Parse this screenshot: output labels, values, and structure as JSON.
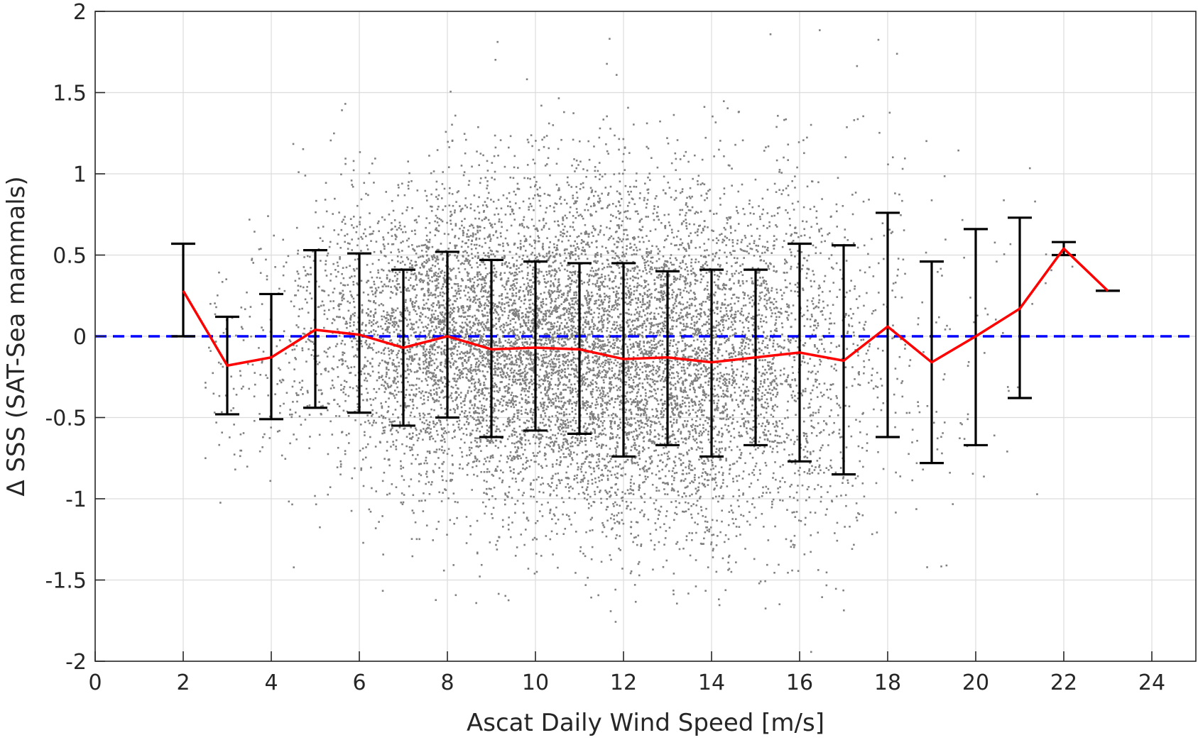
{
  "chart_data": {
    "type": "scatter",
    "xlabel": "Ascat Daily Wind Speed [m/s]",
    "ylabel": "Δ SSS (SAT-Sea mammals)",
    "xlim": [
      0,
      25
    ],
    "ylim": [
      -2,
      2
    ],
    "x_ticks": [
      0,
      2,
      4,
      6,
      8,
      10,
      12,
      14,
      16,
      18,
      20,
      22,
      24
    ],
    "x_tick_labels": [
      "0",
      "2",
      "4",
      "6",
      "8",
      "10",
      "12",
      "14",
      "16",
      "18",
      "20",
      "22",
      "24"
    ],
    "y_ticks": [
      -2,
      -1.5,
      -1,
      -0.5,
      0,
      0.5,
      1,
      1.5,
      2
    ],
    "y_tick_labels": [
      "-2",
      "-1.5",
      "-1",
      "-0.5",
      "0",
      "0.5",
      "1",
      "1.5",
      "2"
    ],
    "grid": true,
    "reference_line": {
      "y": 0,
      "color": "#0000ff",
      "style": "dashed"
    },
    "scatter": {
      "color": "#808080",
      "description": "Individual daily collocations, concentrated between 7 and 17 m/s, spread roughly -1.8 to 1.8",
      "approx_distribution": [
        {
          "x_center": 3,
          "count": 60,
          "spread": 0.35
        },
        {
          "x_center": 4,
          "count": 90,
          "spread": 0.4
        },
        {
          "x_center": 5,
          "count": 200,
          "spread": 0.42
        },
        {
          "x_center": 6,
          "count": 420,
          "spread": 0.45
        },
        {
          "x_center": 7,
          "count": 700,
          "spread": 0.45
        },
        {
          "x_center": 8,
          "count": 1000,
          "spread": 0.48
        },
        {
          "x_center": 9,
          "count": 1150,
          "spread": 0.5
        },
        {
          "x_center": 10,
          "count": 1250,
          "spread": 0.5
        },
        {
          "x_center": 11,
          "count": 1250,
          "spread": 0.52
        },
        {
          "x_center": 12,
          "count": 1200,
          "spread": 0.55
        },
        {
          "x_center": 13,
          "count": 1100,
          "spread": 0.52
        },
        {
          "x_center": 14,
          "count": 950,
          "spread": 0.55
        },
        {
          "x_center": 15,
          "count": 700,
          "spread": 0.52
        },
        {
          "x_center": 16,
          "count": 450,
          "spread": 0.6
        },
        {
          "x_center": 17,
          "count": 230,
          "spread": 0.65
        },
        {
          "x_center": 18,
          "count": 100,
          "spread": 0.65
        },
        {
          "x_center": 19,
          "count": 45,
          "spread": 0.6
        },
        {
          "x_center": 20,
          "count": 25,
          "spread": 0.6
        },
        {
          "x_center": 21,
          "count": 12,
          "spread": 0.5
        },
        {
          "x_center": 22,
          "count": 4,
          "spread": 0.2
        }
      ]
    },
    "series": [
      {
        "kind": "mean_line",
        "color": "#ff0000",
        "x": [
          2,
          3,
          4,
          5,
          6,
          7,
          8,
          9,
          10,
          11,
          12,
          13,
          14,
          15,
          16,
          17,
          18,
          19,
          20,
          21,
          22,
          23
        ],
        "values": [
          0.28,
          -0.18,
          -0.13,
          0.04,
          0.01,
          -0.07,
          0.0,
          -0.08,
          -0.07,
          -0.08,
          -0.14,
          -0.13,
          -0.16,
          -0.13,
          -0.1,
          -0.15,
          0.06,
          -0.16,
          0.0,
          0.17,
          0.54,
          0.28
        ]
      },
      {
        "kind": "error_bars",
        "color": "#000000",
        "x": [
          2,
          3,
          4,
          5,
          6,
          7,
          8,
          9,
          10,
          11,
          12,
          13,
          14,
          15,
          16,
          17,
          18,
          19,
          20,
          21,
          22,
          23
        ],
        "upper": [
          0.57,
          0.12,
          0.26,
          0.53,
          0.51,
          0.41,
          0.52,
          0.47,
          0.46,
          0.45,
          0.45,
          0.4,
          0.41,
          0.41,
          0.57,
          0.56,
          0.76,
          0.46,
          0.66,
          0.73,
          0.58,
          0.28
        ],
        "lower": [
          0.0,
          -0.48,
          -0.51,
          -0.44,
          -0.47,
          -0.55,
          -0.5,
          -0.62,
          -0.58,
          -0.6,
          -0.74,
          -0.67,
          -0.74,
          -0.67,
          -0.77,
          -0.85,
          -0.62,
          -0.78,
          -0.67,
          -0.38,
          0.5,
          0.28
        ]
      }
    ]
  }
}
